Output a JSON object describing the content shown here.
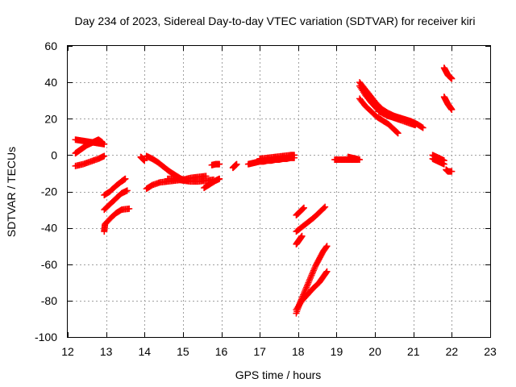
{
  "chart_data": {
    "type": "scatter",
    "title": "Day 234 of 2023, Sidereal Day-to-day VTEC variation (SDTVAR) for receiver kiri",
    "xlabel": "GPS time / hours",
    "ylabel": "SDTVAR / TECUs",
    "xlim": [
      12,
      23
    ],
    "ylim": [
      -100,
      60
    ],
    "xticks": [
      12,
      13,
      14,
      15,
      16,
      17,
      18,
      19,
      20,
      21,
      22,
      23
    ],
    "yticks": [
      -100,
      -80,
      -60,
      -40,
      -20,
      0,
      20,
      40,
      60
    ],
    "grid": true,
    "marker": "+",
    "color": "#ff0000",
    "series": [
      {
        "points": [
          [
            12.2,
            1
          ],
          [
            12.3,
            2.5
          ],
          [
            12.4,
            4
          ],
          [
            12.5,
            5.5
          ],
          [
            12.6,
            6.5
          ],
          [
            12.7,
            7.5
          ],
          [
            12.8,
            8.5
          ],
          [
            12.9,
            7
          ]
        ]
      },
      {
        "points": [
          [
            12.2,
            8.5
          ],
          [
            12.35,
            8
          ],
          [
            12.5,
            7.5
          ],
          [
            12.65,
            7
          ],
          [
            12.8,
            6.5
          ],
          [
            12.95,
            6
          ]
        ]
      },
      {
        "points": [
          [
            12.2,
            -6
          ],
          [
            12.4,
            -5
          ],
          [
            12.6,
            -3.5
          ],
          [
            12.8,
            -2
          ],
          [
            12.95,
            -0.5
          ]
        ]
      },
      {
        "points": [
          [
            12.95,
            -22
          ],
          [
            13.1,
            -20
          ],
          [
            13.25,
            -17
          ],
          [
            13.4,
            -14.5
          ],
          [
            13.5,
            -13
          ]
        ]
      },
      {
        "points": [
          [
            12.95,
            -30
          ],
          [
            13.1,
            -27
          ],
          [
            13.25,
            -24
          ],
          [
            13.4,
            -21
          ],
          [
            13.55,
            -19.5
          ]
        ]
      },
      {
        "points": [
          [
            12.95,
            -42
          ],
          [
            12.97,
            -38
          ],
          [
            13.1,
            -35
          ],
          [
            13.25,
            -32
          ],
          [
            13.4,
            -30
          ],
          [
            13.6,
            -29.5
          ]
        ]
      },
      {
        "points": [
          [
            13.9,
            -1
          ],
          [
            13.95,
            -2
          ],
          [
            14.0,
            -3
          ]
        ]
      },
      {
        "points": [
          [
            14.05,
            -0.5
          ],
          [
            14.2,
            -2
          ],
          [
            14.35,
            -4
          ],
          [
            14.5,
            -6.5
          ],
          [
            14.65,
            -9
          ],
          [
            14.8,
            -11
          ],
          [
            14.95,
            -13
          ],
          [
            15.1,
            -14
          ]
        ]
      },
      {
        "points": [
          [
            14.05,
            -18.5
          ],
          [
            14.2,
            -16.5
          ],
          [
            14.4,
            -15
          ],
          [
            14.6,
            -14.5
          ],
          [
            14.8,
            -14
          ],
          [
            15.0,
            -13.5
          ],
          [
            15.2,
            -12.5
          ],
          [
            15.4,
            -12
          ],
          [
            15.6,
            -11.5
          ]
        ]
      },
      {
        "points": [
          [
            14.6,
            -13
          ],
          [
            14.8,
            -13
          ],
          [
            15.0,
            -14
          ],
          [
            15.2,
            -14.5
          ],
          [
            15.4,
            -14.5
          ],
          [
            15.6,
            -14
          ],
          [
            15.8,
            -13.5
          ]
        ]
      },
      {
        "points": [
          [
            15.55,
            -18
          ],
          [
            15.7,
            -16
          ],
          [
            15.85,
            -14
          ],
          [
            15.95,
            -13
          ]
        ]
      },
      {
        "points": [
          [
            15.75,
            -5.5
          ],
          [
            15.85,
            -5
          ],
          [
            15.95,
            -5
          ]
        ]
      },
      {
        "points": [
          [
            16.3,
            -7
          ],
          [
            16.35,
            -6
          ],
          [
            16.4,
            -5
          ]
        ]
      },
      {
        "points": [
          [
            16.7,
            -5
          ],
          [
            16.8,
            -4.5
          ],
          [
            16.9,
            -4
          ],
          [
            17.0,
            -3.5
          ],
          [
            17.1,
            -3.5
          ],
          [
            17.2,
            -3
          ],
          [
            17.3,
            -3
          ],
          [
            17.4,
            -2.5
          ],
          [
            17.5,
            -2.5
          ],
          [
            17.6,
            -2
          ],
          [
            17.7,
            -2
          ],
          [
            17.8,
            -1.5
          ],
          [
            17.9,
            -1.5
          ]
        ]
      },
      {
        "points": [
          [
            17.0,
            -2
          ],
          [
            17.2,
            -1.5
          ],
          [
            17.4,
            -1
          ],
          [
            17.6,
            -0.5
          ],
          [
            17.8,
            0
          ],
          [
            17.9,
            0
          ]
        ]
      },
      {
        "points": [
          [
            17.95,
            -33
          ],
          [
            18.05,
            -31
          ],
          [
            18.15,
            -29
          ]
        ]
      },
      {
        "points": [
          [
            17.95,
            -42
          ],
          [
            18.1,
            -39.5
          ],
          [
            18.25,
            -37
          ],
          [
            18.4,
            -34.5
          ],
          [
            18.55,
            -31.5
          ],
          [
            18.7,
            -28.5
          ]
        ]
      },
      {
        "points": [
          [
            17.95,
            -49
          ],
          [
            18.0,
            -47.5
          ],
          [
            18.05,
            -46
          ],
          [
            18.1,
            -44.5
          ]
        ]
      },
      {
        "points": [
          [
            17.95,
            -87
          ],
          [
            18.05,
            -81
          ],
          [
            18.15,
            -76
          ],
          [
            18.25,
            -71
          ],
          [
            18.35,
            -66
          ],
          [
            18.45,
            -61
          ],
          [
            18.55,
            -57
          ],
          [
            18.65,
            -53
          ],
          [
            18.75,
            -50
          ]
        ]
      },
      {
        "points": [
          [
            17.95,
            -85
          ],
          [
            18.1,
            -80
          ],
          [
            18.25,
            -76.5
          ],
          [
            18.4,
            -73
          ],
          [
            18.55,
            -70
          ],
          [
            18.65,
            -67
          ],
          [
            18.75,
            -64
          ]
        ]
      },
      {
        "points": [
          [
            18.95,
            -2.5
          ],
          [
            19.1,
            -2.5
          ],
          [
            19.25,
            -2.5
          ],
          [
            19.4,
            -2.5
          ],
          [
            19.55,
            -2.5
          ]
        ]
      },
      {
        "points": [
          [
            19.3,
            -1
          ],
          [
            19.4,
            -1.5
          ],
          [
            19.5,
            -2
          ],
          [
            19.6,
            -2.5
          ]
        ]
      },
      {
        "points": [
          [
            19.6,
            40
          ],
          [
            19.75,
            36
          ],
          [
            19.9,
            32
          ],
          [
            20.05,
            28
          ],
          [
            20.2,
            25
          ],
          [
            20.35,
            23
          ],
          [
            20.5,
            21.5
          ],
          [
            20.65,
            20.5
          ],
          [
            20.8,
            19.5
          ],
          [
            20.95,
            18.5
          ],
          [
            21.1,
            17
          ],
          [
            21.25,
            15
          ]
        ]
      },
      {
        "points": [
          [
            19.6,
            38
          ],
          [
            19.75,
            33
          ],
          [
            19.9,
            29
          ],
          [
            20.05,
            25.5
          ],
          [
            20.2,
            23
          ],
          [
            20.35,
            21.5
          ],
          [
            20.5,
            20.5
          ],
          [
            20.65,
            19.5
          ]
        ]
      },
      {
        "points": [
          [
            19.6,
            31
          ],
          [
            19.75,
            27
          ],
          [
            19.9,
            24
          ],
          [
            20.05,
            21
          ],
          [
            20.2,
            19
          ],
          [
            20.35,
            17
          ],
          [
            20.5,
            14
          ],
          [
            20.6,
            12
          ]
        ]
      },
      {
        "points": [
          [
            20.1,
            24
          ],
          [
            20.3,
            22
          ],
          [
            20.5,
            20.5
          ],
          [
            20.7,
            19
          ],
          [
            20.9,
            17.5
          ],
          [
            21.05,
            16.5
          ]
        ]
      },
      {
        "points": [
          [
            21.5,
            0
          ],
          [
            21.6,
            -1
          ],
          [
            21.7,
            -2
          ],
          [
            21.8,
            -3
          ]
        ]
      },
      {
        "points": [
          [
            21.5,
            -2
          ],
          [
            21.6,
            -3
          ],
          [
            21.7,
            -4
          ],
          [
            21.8,
            -5
          ]
        ]
      },
      {
        "points": [
          [
            21.85,
            -8
          ],
          [
            21.9,
            -9
          ],
          [
            22.0,
            -9
          ]
        ]
      },
      {
        "points": [
          [
            21.8,
            48
          ],
          [
            21.85,
            46
          ],
          [
            21.9,
            44
          ],
          [
            21.95,
            43
          ],
          [
            22.0,
            42
          ]
        ]
      },
      {
        "points": [
          [
            21.8,
            32
          ],
          [
            21.85,
            30
          ],
          [
            21.9,
            28
          ],
          [
            21.95,
            26.5
          ],
          [
            22.0,
            25
          ]
        ]
      }
    ]
  }
}
